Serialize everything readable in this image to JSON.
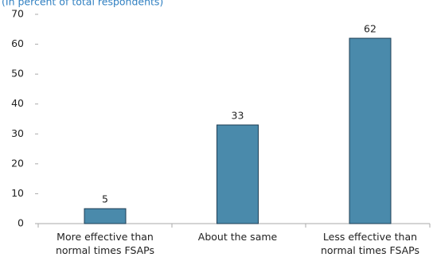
{
  "chart_data": {
    "type": "bar",
    "subtitle": "(In percent of total respondents)",
    "categories": [
      "More effective than normal times FSAPs",
      "About the same",
      "Less effective than normal times FSAPs"
    ],
    "values": [
      5,
      33,
      62
    ],
    "color": "#4a8aab",
    "ylim": [
      0,
      70
    ],
    "yticks": [
      0,
      10,
      20,
      30,
      40,
      50,
      60,
      70
    ]
  }
}
